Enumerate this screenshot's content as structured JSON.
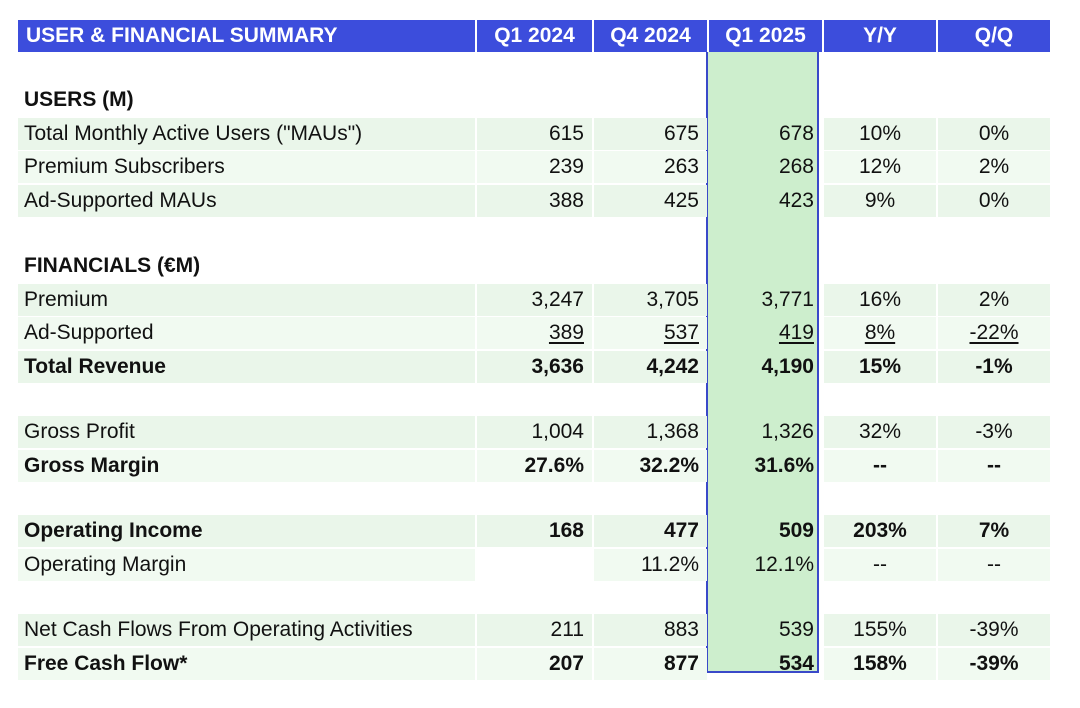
{
  "header": {
    "title": "USER & FINANCIAL SUMMARY",
    "cols": [
      "Q1 2024",
      "Q4 2024",
      "Q1 2025",
      "Y/Y",
      "Q/Q"
    ]
  },
  "users": {
    "section": "USERS (M)",
    "rows": [
      {
        "label": "Total Monthly Active Users (\"MAUs\")",
        "q1_2024": "615",
        "q4_2024": "675",
        "q1_2025": "678",
        "yy": "10%",
        "qq": "0%"
      },
      {
        "label": "Premium Subscribers",
        "q1_2024": "239",
        "q4_2024": "263",
        "q1_2025": "268",
        "yy": "12%",
        "qq": "2%"
      },
      {
        "label": "Ad-Supported MAUs",
        "q1_2024": "388",
        "q4_2024": "425",
        "q1_2025": "423",
        "yy": "9%",
        "qq": "0%"
      }
    ]
  },
  "financials": {
    "section": "FINANCIALS (€M)",
    "premium": {
      "label": "Premium",
      "q1_2024": "3,247",
      "q4_2024": "3,705",
      "q1_2025": "3,771",
      "yy": "16%",
      "qq": "2%"
    },
    "ad_supported": {
      "label": "Ad-Supported",
      "q1_2024": "389",
      "q4_2024": "537",
      "q1_2025": "419",
      "yy": "8%",
      "qq": "-22%"
    },
    "total_revenue": {
      "label": "Total Revenue",
      "q1_2024": "3,636",
      "q4_2024": "4,242",
      "q1_2025": "4,190",
      "yy": "15%",
      "qq": "-1%"
    },
    "gross_profit": {
      "label": "Gross Profit",
      "q1_2024": "1,004",
      "q4_2024": "1,368",
      "q1_2025": "1,326",
      "yy": "32%",
      "qq": "-3%"
    },
    "gross_margin": {
      "label": "Gross Margin",
      "q1_2024": "27.6%",
      "q4_2024": "32.2%",
      "q1_2025": "31.6%",
      "yy": "--",
      "qq": "--"
    },
    "operating_income": {
      "label": "Operating Income",
      "q1_2024": "168",
      "q4_2024": "477",
      "q1_2025": "509",
      "yy": "203%",
      "qq": "7%"
    },
    "operating_margin": {
      "label": "Operating Margin",
      "q1_2024": "",
      "q4_2024": "11.2%",
      "q1_2025": "12.1%",
      "yy": "--",
      "qq": "--"
    },
    "net_cash_flows": {
      "label": "Net Cash Flows From Operating Activities",
      "q1_2024": "211",
      "q4_2024": "883",
      "q1_2025": "539",
      "yy": "155%",
      "qq": "-39%"
    },
    "free_cash_flow": {
      "label": "Free Cash Flow*",
      "q1_2024": "207",
      "q4_2024": "877",
      "q1_2025": "534",
      "yy": "158%",
      "qq": "-39%"
    }
  }
}
